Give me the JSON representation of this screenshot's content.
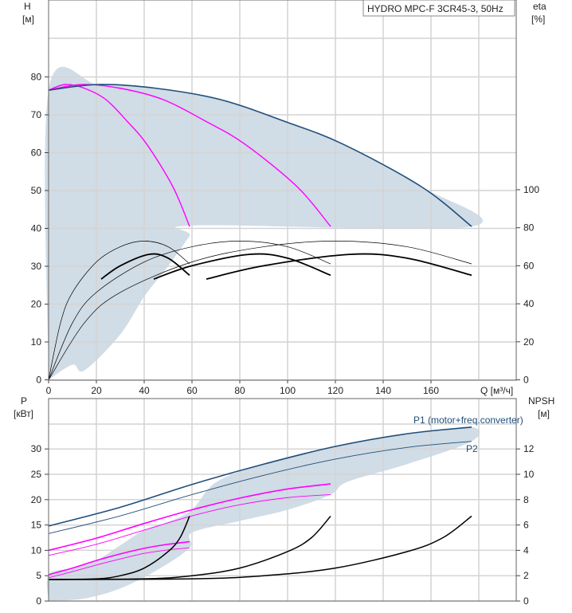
{
  "title": "HYDRO MPC-F 3CR45-3, 50Hz",
  "chart_data": [
    {
      "type": "line",
      "name": "head-efficiency",
      "xlabel": "Q [м³/ч]",
      "ylabel": "H",
      "ylabel_unit": "[м]",
      "y2label": "eta",
      "y2label_unit": "[%]",
      "xlim": [
        0,
        195
      ],
      "ylim": [
        0,
        100
      ],
      "y2lim": [
        0,
        200
      ],
      "xticks": [
        "0",
        "20",
        "40",
        "60",
        "80",
        "100",
        "120",
        "140",
        "160"
      ],
      "yticks": [
        "0",
        "10",
        "20",
        "30",
        "40",
        "50",
        "60",
        "70",
        "80"
      ],
      "y2ticks": [
        "0",
        "20",
        "40",
        "60",
        "80",
        "100"
      ],
      "grid": true,
      "colors": {
        "full": "#1f4e79",
        "partial": "#ff00ff",
        "eta": "#000000",
        "shade": "#d0dce6"
      },
      "series": [
        {
          "kind": "H",
          "pumps": 1,
          "x": [
            0,
            7,
            15,
            24,
            33,
            41,
            52,
            59
          ],
          "y": [
            76.5,
            78,
            77,
            74,
            68.2,
            62.3,
            51,
            40.5
          ]
        },
        {
          "kind": "H",
          "pumps": 2,
          "x": [
            0,
            14,
            30,
            48,
            66,
            82,
            104,
            118
          ],
          "y": [
            76.5,
            78,
            77,
            74,
            68.2,
            62.3,
            51,
            40.5
          ]
        },
        {
          "kind": "H",
          "pumps": 3,
          "x": [
            0,
            21,
            45,
            72,
            99,
            123,
            156,
            177
          ],
          "y": [
            76.5,
            78,
            77,
            74,
            68.2,
            62.3,
            51,
            40.5
          ]
        },
        {
          "kind": "eta",
          "pumps": 1,
          "x": [
            0,
            5,
            10,
            20,
            30,
            40,
            50,
            59
          ],
          "y": [
            0,
            30,
            46,
            62,
            70,
            73,
            70,
            61
          ]
        },
        {
          "kind": "eta",
          "pumps": 2,
          "x": [
            0,
            10,
            20,
            40,
            60,
            80,
            100,
            118
          ],
          "y": [
            0,
            30,
            46,
            62,
            70,
            73,
            70,
            61
          ]
        },
        {
          "kind": "eta",
          "pumps": 3,
          "x": [
            0,
            15,
            30,
            60,
            90,
            120,
            150,
            177
          ],
          "y": [
            0,
            30,
            46,
            62,
            70,
            73,
            70,
            61
          ]
        },
        {
          "kind": "eta-total",
          "pumps": 1,
          "x": [
            22,
            30,
            42,
            50,
            59
          ],
          "y": [
            53,
            60,
            66,
            64,
            55
          ]
        },
        {
          "kind": "eta-total",
          "pumps": 2,
          "x": [
            44,
            60,
            84,
            100,
            118
          ],
          "y": [
            53,
            60,
            66,
            64,
            55
          ]
        },
        {
          "kind": "eta-total",
          "pumps": 3,
          "x": [
            66,
            90,
            126,
            150,
            177
          ],
          "y": [
            53,
            60,
            66,
            64,
            55
          ]
        }
      ],
      "shade": {
        "x": [
          0,
          0,
          21,
          45,
          72,
          99,
          123,
          156,
          177,
          62,
          59,
          50,
          40,
          30,
          15,
          10,
          0
        ],
        "y": [
          0,
          76.5,
          78,
          77,
          74,
          68.2,
          62.3,
          51,
          40.5,
          40.8,
          38,
          30,
          22,
          12,
          2.5,
          4,
          0
        ]
      }
    },
    {
      "type": "line",
      "name": "power-npsh",
      "xlabel": "Q [м³/ч]",
      "ylabel": "P",
      "ylabel_unit": "[кВт]",
      "y2label": "NPSH",
      "y2label_unit": "[м]",
      "xlim": [
        0,
        195
      ],
      "ylim": [
        0,
        40
      ],
      "y2lim": [
        0,
        16
      ],
      "yticks": [
        "0",
        "5",
        "10",
        "15",
        "20",
        "25",
        "30"
      ],
      "y2ticks": [
        "0",
        "2",
        "4",
        "6",
        "8",
        "10",
        "12"
      ],
      "grid": true,
      "series": [
        {
          "kind": "P1",
          "pumps": 3,
          "label": "P1 (motor+freq.converter)",
          "x": [
            0,
            30,
            60,
            90,
            120,
            150,
            177
          ],
          "y": [
            14.8,
            18.5,
            23,
            27,
            30.5,
            33,
            34.3
          ]
        },
        {
          "kind": "P2",
          "pumps": 3,
          "label": "P2",
          "x": [
            0,
            30,
            60,
            90,
            120,
            150,
            177
          ],
          "y": [
            13.3,
            16.8,
            21,
            24.8,
            28,
            30.3,
            31.5
          ]
        },
        {
          "kind": "P1",
          "pumps": 2,
          "x": [
            0,
            20,
            40,
            60,
            80,
            100,
            118
          ],
          "y": [
            10,
            12.4,
            15.3,
            18,
            20.3,
            22.1,
            23.1
          ]
        },
        {
          "kind": "P2",
          "pumps": 2,
          "x": [
            0,
            20,
            40,
            60,
            80,
            100,
            118
          ],
          "y": [
            9,
            11.2,
            14,
            16.8,
            19,
            20.4,
            21
          ]
        },
        {
          "kind": "P1",
          "pumps": 1,
          "x": [
            0,
            10,
            20,
            30,
            40,
            50,
            59
          ],
          "y": [
            5.2,
            6.5,
            8,
            9.3,
            10.4,
            11.2,
            11.7
          ]
        },
        {
          "kind": "P2",
          "pumps": 1,
          "x": [
            0,
            10,
            20,
            30,
            40,
            50,
            59
          ],
          "y": [
            4.6,
            5.8,
            7.1,
            8.3,
            9.4,
            10.1,
            10.5
          ]
        },
        {
          "kind": "NPSH",
          "pumps": 1,
          "x": [
            0,
            20,
            30,
            40,
            50,
            55,
            59
          ],
          "y": [
            1.7,
            1.75,
            2.0,
            2.6,
            3.9,
            5.0,
            6.7
          ]
        },
        {
          "kind": "NPSH",
          "pumps": 2,
          "x": [
            0,
            40,
            60,
            80,
            100,
            110,
            118
          ],
          "y": [
            1.7,
            1.75,
            2.0,
            2.6,
            3.9,
            5.0,
            6.7
          ]
        },
        {
          "kind": "NPSH",
          "pumps": 3,
          "x": [
            0,
            60,
            90,
            120,
            150,
            165,
            177
          ],
          "y": [
            1.7,
            1.75,
            2.0,
            2.6,
            3.9,
            5.0,
            6.7
          ]
        }
      ],
      "shade": {
        "x": [
          0,
          0,
          10,
          20,
          30,
          40,
          50,
          60,
          70,
          90,
          120,
          150,
          177,
          177,
          150,
          125,
          118,
          100,
          80,
          60,
          59,
          45,
          30,
          15,
          0
        ],
        "y": [
          0,
          5.2,
          6.5,
          8,
          11,
          14,
          15.6,
          18,
          23.4,
          27,
          30.5,
          33,
          34.3,
          31.5,
          27,
          23.5,
          21,
          18,
          15.8,
          13.5,
          10.5,
          6,
          2.5,
          0.5,
          0
        ]
      }
    }
  ]
}
